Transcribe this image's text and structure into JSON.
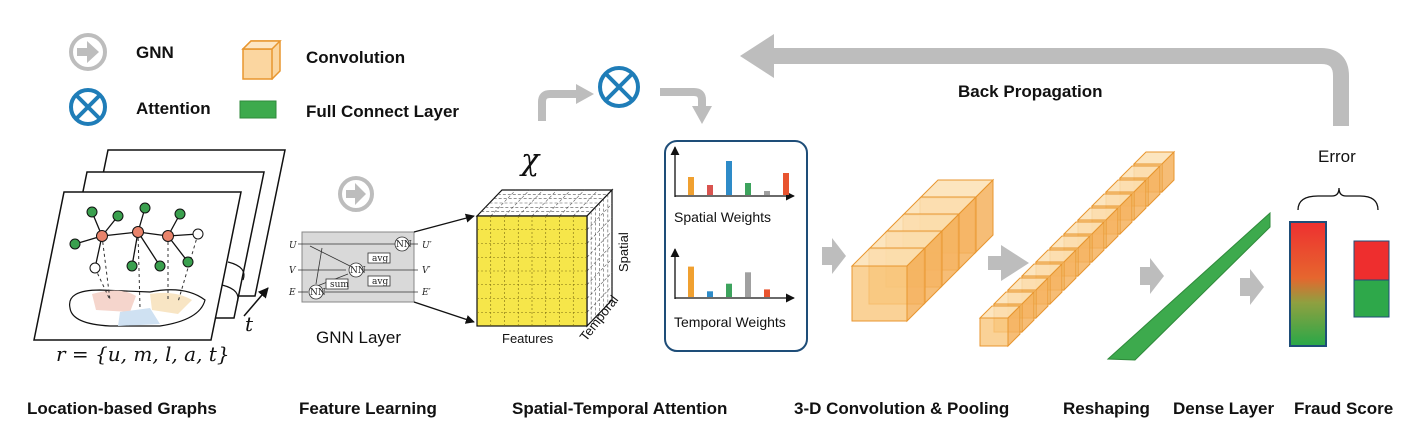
{
  "legend": {
    "gnn": "GNN",
    "attention": "Attention",
    "convolution": "Convolution",
    "full_connect": "Full Connect Layer"
  },
  "stages": {
    "graphs": "Location-based Graphs",
    "feature": "Feature Learning",
    "attention": "Spatial-Temporal Attention",
    "conv": "3-D Convolution & Pooling",
    "reshape": "Reshaping",
    "dense": "Dense Layer",
    "fraud": "Fraud Score"
  },
  "graph": {
    "formula": "r = {u, m, l, a, t}",
    "time_label": "t"
  },
  "gnn_layer": {
    "caption": "GNN Layer",
    "inputs": [
      "U",
      "V",
      "E"
    ],
    "outputs": [
      "U′",
      "V′",
      "E′"
    ],
    "nodes": [
      "NN",
      "NN",
      "NN"
    ],
    "ops": [
      "avg",
      "avg",
      "avg"
    ],
    "op_sum": "sum"
  },
  "tensor": {
    "symbol": "χ",
    "axis_features": "Features",
    "axis_temporal": "Temporal",
    "axis_spatial": "Spatial"
  },
  "weights": {
    "spatial_label": "Spatial Weights",
    "temporal_label": "Temporal Weights",
    "spatial_bars": [
      {
        "value": 0.45,
        "color": "#F0A030"
      },
      {
        "value": 0.25,
        "color": "#D9534F"
      },
      {
        "value": 0.85,
        "color": "#2E8BC8"
      },
      {
        "value": 0.3,
        "color": "#3DA35D"
      },
      {
        "value": 0.1,
        "color": "#A0A0A0"
      },
      {
        "value": 0.55,
        "color": "#E8542F"
      }
    ],
    "temporal_bars": [
      {
        "value": 0.8,
        "color": "#F0A030"
      },
      {
        "value": 0.15,
        "color": "#2E8BC8"
      },
      {
        "value": 0.35,
        "color": "#3DA35D"
      },
      {
        "value": 0.65,
        "color": "#A0A0A0"
      },
      {
        "value": 0.2,
        "color": "#E8542F"
      }
    ]
  },
  "feedback": {
    "back_propagation": "Back Propagation",
    "error": "Error"
  },
  "colors": {
    "arrow": "#BDBDBD",
    "attention": "#1F7DB8",
    "conv_fill": "#F9C77D",
    "conv_edge": "#E8962F",
    "dense": "#3DAA4D",
    "grid_yellow": "#F6E64A"
  }
}
